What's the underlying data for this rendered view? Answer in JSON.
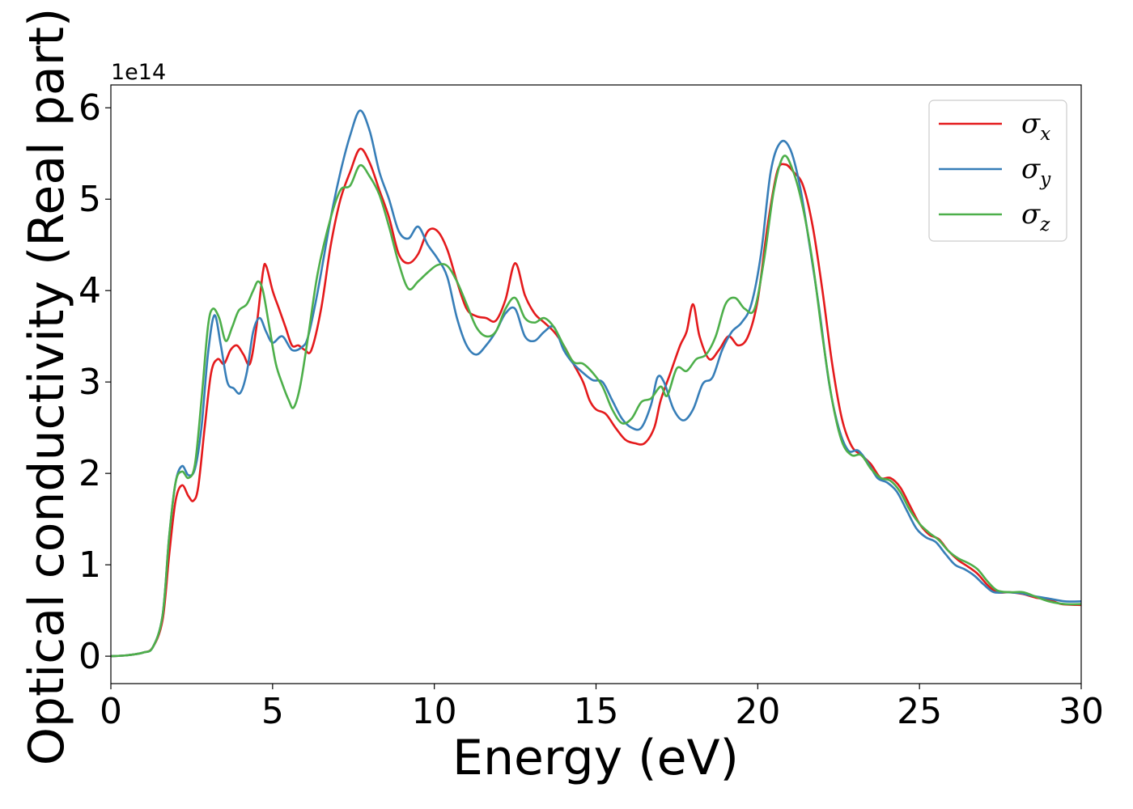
{
  "chart_data": {
    "type": "line",
    "xlabel": "Energy (eV)",
    "ylabel": "Optical conductivity (Real part)",
    "y_offset_label": "1e14",
    "y_scale": 100000000000000.0,
    "xlim": [
      0,
      30
    ],
    "ylim": [
      -0.3,
      6.25
    ],
    "x_ticks": [
      0,
      5,
      10,
      15,
      20,
      25,
      30
    ],
    "y_ticks": [
      0,
      1,
      2,
      3,
      4,
      5,
      6
    ],
    "grid": false,
    "legend_placement": "top-right",
    "series": [
      {
        "name": "σx",
        "symbol": "σ",
        "subscript": "x",
        "color": "#e41a1c",
        "points": [
          [
            0,
            0
          ],
          [
            0.5,
            0.01
          ],
          [
            1,
            0.04
          ],
          [
            1.3,
            0.1
          ],
          [
            1.6,
            0.4
          ],
          [
            1.8,
            1.1
          ],
          [
            2.0,
            1.7
          ],
          [
            2.2,
            1.87
          ],
          [
            2.4,
            1.75
          ],
          [
            2.55,
            1.7
          ],
          [
            2.7,
            1.85
          ],
          [
            2.9,
            2.5
          ],
          [
            3.1,
            3.1
          ],
          [
            3.3,
            3.25
          ],
          [
            3.5,
            3.2
          ],
          [
            3.7,
            3.35
          ],
          [
            3.9,
            3.4
          ],
          [
            4.1,
            3.3
          ],
          [
            4.3,
            3.2
          ],
          [
            4.5,
            3.6
          ],
          [
            4.7,
            4.2
          ],
          [
            4.8,
            4.27
          ],
          [
            5.0,
            4.0
          ],
          [
            5.2,
            3.8
          ],
          [
            5.4,
            3.6
          ],
          [
            5.6,
            3.4
          ],
          [
            5.8,
            3.4
          ],
          [
            6.0,
            3.35
          ],
          [
            6.2,
            3.35
          ],
          [
            6.5,
            3.8
          ],
          [
            6.8,
            4.5
          ],
          [
            7.1,
            5.0
          ],
          [
            7.4,
            5.3
          ],
          [
            7.7,
            5.55
          ],
          [
            8.0,
            5.4
          ],
          [
            8.3,
            5.1
          ],
          [
            8.6,
            4.8
          ],
          [
            8.9,
            4.4
          ],
          [
            9.2,
            4.3
          ],
          [
            9.5,
            4.4
          ],
          [
            9.8,
            4.65
          ],
          [
            10.1,
            4.65
          ],
          [
            10.4,
            4.45
          ],
          [
            10.7,
            4.1
          ],
          [
            11.0,
            3.8
          ],
          [
            11.3,
            3.72
          ],
          [
            11.6,
            3.7
          ],
          [
            11.9,
            3.67
          ],
          [
            12.2,
            3.9
          ],
          [
            12.5,
            4.3
          ],
          [
            12.8,
            3.95
          ],
          [
            13.1,
            3.75
          ],
          [
            13.4,
            3.65
          ],
          [
            13.7,
            3.55
          ],
          [
            14.0,
            3.4
          ],
          [
            14.3,
            3.2
          ],
          [
            14.6,
            3.0
          ],
          [
            14.8,
            2.8
          ],
          [
            15.0,
            2.7
          ],
          [
            15.3,
            2.65
          ],
          [
            15.6,
            2.5
          ],
          [
            15.9,
            2.37
          ],
          [
            16.2,
            2.33
          ],
          [
            16.5,
            2.33
          ],
          [
            16.8,
            2.5
          ],
          [
            17.0,
            2.8
          ],
          [
            17.3,
            3.1
          ],
          [
            17.6,
            3.4
          ],
          [
            17.8,
            3.55
          ],
          [
            18.0,
            3.85
          ],
          [
            18.2,
            3.5
          ],
          [
            18.5,
            3.25
          ],
          [
            18.8,
            3.35
          ],
          [
            19.1,
            3.5
          ],
          [
            19.4,
            3.4
          ],
          [
            19.7,
            3.5
          ],
          [
            20.0,
            3.9
          ],
          [
            20.3,
            4.7
          ],
          [
            20.6,
            5.3
          ],
          [
            20.85,
            5.38
          ],
          [
            21.1,
            5.3
          ],
          [
            21.4,
            5.15
          ],
          [
            21.7,
            4.7
          ],
          [
            22.0,
            4.0
          ],
          [
            22.3,
            3.2
          ],
          [
            22.6,
            2.6
          ],
          [
            22.9,
            2.3
          ],
          [
            23.2,
            2.2
          ],
          [
            23.5,
            2.1
          ],
          [
            23.8,
            1.95
          ],
          [
            24.1,
            1.95
          ],
          [
            24.4,
            1.85
          ],
          [
            24.7,
            1.65
          ],
          [
            25.0,
            1.45
          ],
          [
            25.3,
            1.33
          ],
          [
            25.6,
            1.28
          ],
          [
            25.9,
            1.15
          ],
          [
            26.2,
            1.05
          ],
          [
            26.5,
            0.98
          ],
          [
            26.8,
            0.9
          ],
          [
            27.1,
            0.78
          ],
          [
            27.4,
            0.7
          ],
          [
            27.8,
            0.7
          ],
          [
            28.2,
            0.68
          ],
          [
            28.6,
            0.64
          ],
          [
            29.0,
            0.62
          ],
          [
            29.4,
            0.57
          ],
          [
            30.0,
            0.56
          ]
        ]
      },
      {
        "name": "σy",
        "symbol": "σ",
        "subscript": "y",
        "color": "#377eb8",
        "points": [
          [
            0,
            0
          ],
          [
            0.5,
            0.01
          ],
          [
            1,
            0.04
          ],
          [
            1.3,
            0.1
          ],
          [
            1.6,
            0.45
          ],
          [
            1.8,
            1.3
          ],
          [
            2.0,
            1.9
          ],
          [
            2.2,
            2.08
          ],
          [
            2.4,
            1.98
          ],
          [
            2.6,
            2.05
          ],
          [
            2.8,
            2.5
          ],
          [
            3.0,
            3.3
          ],
          [
            3.2,
            3.73
          ],
          [
            3.4,
            3.4
          ],
          [
            3.6,
            3.0
          ],
          [
            3.8,
            2.93
          ],
          [
            4.0,
            2.88
          ],
          [
            4.2,
            3.1
          ],
          [
            4.4,
            3.55
          ],
          [
            4.6,
            3.7
          ],
          [
            4.8,
            3.55
          ],
          [
            5.0,
            3.43
          ],
          [
            5.3,
            3.5
          ],
          [
            5.6,
            3.35
          ],
          [
            5.9,
            3.38
          ],
          [
            6.1,
            3.5
          ],
          [
            6.4,
            4.0
          ],
          [
            6.8,
            4.8
          ],
          [
            7.1,
            5.3
          ],
          [
            7.4,
            5.7
          ],
          [
            7.7,
            5.97
          ],
          [
            8.0,
            5.75
          ],
          [
            8.3,
            5.3
          ],
          [
            8.6,
            5.0
          ],
          [
            8.9,
            4.65
          ],
          [
            9.2,
            4.57
          ],
          [
            9.5,
            4.7
          ],
          [
            9.8,
            4.5
          ],
          [
            10.1,
            4.35
          ],
          [
            10.4,
            4.15
          ],
          [
            10.7,
            3.7
          ],
          [
            11.0,
            3.4
          ],
          [
            11.3,
            3.3
          ],
          [
            11.6,
            3.4
          ],
          [
            11.9,
            3.55
          ],
          [
            12.2,
            3.75
          ],
          [
            12.5,
            3.8
          ],
          [
            12.8,
            3.5
          ],
          [
            13.1,
            3.45
          ],
          [
            13.4,
            3.55
          ],
          [
            13.7,
            3.6
          ],
          [
            14.0,
            3.35
          ],
          [
            14.3,
            3.2
          ],
          [
            14.6,
            3.1
          ],
          [
            14.9,
            3.02
          ],
          [
            15.2,
            3.0
          ],
          [
            15.5,
            2.8
          ],
          [
            15.8,
            2.6
          ],
          [
            16.1,
            2.5
          ],
          [
            16.4,
            2.5
          ],
          [
            16.7,
            2.75
          ],
          [
            16.9,
            3.05
          ],
          [
            17.1,
            3.0
          ],
          [
            17.4,
            2.7
          ],
          [
            17.7,
            2.58
          ],
          [
            18.0,
            2.7
          ],
          [
            18.3,
            2.98
          ],
          [
            18.6,
            3.05
          ],
          [
            18.9,
            3.35
          ],
          [
            19.2,
            3.55
          ],
          [
            19.5,
            3.65
          ],
          [
            19.8,
            3.85
          ],
          [
            20.1,
            4.4
          ],
          [
            20.4,
            5.3
          ],
          [
            20.7,
            5.62
          ],
          [
            21.0,
            5.55
          ],
          [
            21.3,
            5.15
          ],
          [
            21.6,
            4.5
          ],
          [
            21.9,
            3.8
          ],
          [
            22.2,
            3.0
          ],
          [
            22.5,
            2.5
          ],
          [
            22.8,
            2.25
          ],
          [
            23.1,
            2.25
          ],
          [
            23.4,
            2.12
          ],
          [
            23.7,
            1.95
          ],
          [
            24.0,
            1.9
          ],
          [
            24.3,
            1.8
          ],
          [
            24.6,
            1.6
          ],
          [
            24.9,
            1.4
          ],
          [
            25.2,
            1.3
          ],
          [
            25.5,
            1.25
          ],
          [
            25.8,
            1.12
          ],
          [
            26.1,
            1.0
          ],
          [
            26.4,
            0.95
          ],
          [
            26.7,
            0.88
          ],
          [
            27.0,
            0.78
          ],
          [
            27.3,
            0.7
          ],
          [
            27.7,
            0.7
          ],
          [
            28.1,
            0.69
          ],
          [
            28.5,
            0.66
          ],
          [
            29.0,
            0.63
          ],
          [
            29.5,
            0.6
          ],
          [
            30.0,
            0.6
          ]
        ]
      },
      {
        "name": "σz",
        "symbol": "σ",
        "subscript": "z",
        "color": "#4daf4a",
        "points": [
          [
            0,
            0
          ],
          [
            0.5,
            0.01
          ],
          [
            1,
            0.04
          ],
          [
            1.3,
            0.1
          ],
          [
            1.6,
            0.45
          ],
          [
            1.8,
            1.3
          ],
          [
            2.0,
            1.9
          ],
          [
            2.2,
            2.02
          ],
          [
            2.4,
            1.95
          ],
          [
            2.6,
            2.1
          ],
          [
            2.8,
            2.8
          ],
          [
            3.0,
            3.6
          ],
          [
            3.15,
            3.8
          ],
          [
            3.35,
            3.7
          ],
          [
            3.55,
            3.45
          ],
          [
            3.75,
            3.6
          ],
          [
            3.95,
            3.78
          ],
          [
            4.2,
            3.85
          ],
          [
            4.4,
            4.0
          ],
          [
            4.55,
            4.1
          ],
          [
            4.7,
            4.0
          ],
          [
            4.9,
            3.6
          ],
          [
            5.1,
            3.2
          ],
          [
            5.3,
            2.98
          ],
          [
            5.5,
            2.8
          ],
          [
            5.65,
            2.72
          ],
          [
            5.85,
            2.95
          ],
          [
            6.1,
            3.5
          ],
          [
            6.4,
            4.2
          ],
          [
            6.8,
            4.8
          ],
          [
            7.1,
            5.1
          ],
          [
            7.4,
            5.15
          ],
          [
            7.7,
            5.37
          ],
          [
            8.0,
            5.25
          ],
          [
            8.3,
            5.05
          ],
          [
            8.6,
            4.7
          ],
          [
            8.9,
            4.3
          ],
          [
            9.2,
            4.02
          ],
          [
            9.5,
            4.1
          ],
          [
            9.8,
            4.2
          ],
          [
            10.1,
            4.28
          ],
          [
            10.4,
            4.27
          ],
          [
            10.7,
            4.1
          ],
          [
            11.0,
            3.85
          ],
          [
            11.3,
            3.6
          ],
          [
            11.6,
            3.5
          ],
          [
            11.9,
            3.55
          ],
          [
            12.2,
            3.8
          ],
          [
            12.5,
            3.92
          ],
          [
            12.8,
            3.7
          ],
          [
            13.1,
            3.65
          ],
          [
            13.4,
            3.7
          ],
          [
            13.7,
            3.6
          ],
          [
            14.0,
            3.4
          ],
          [
            14.3,
            3.22
          ],
          [
            14.6,
            3.2
          ],
          [
            14.9,
            3.1
          ],
          [
            15.2,
            2.95
          ],
          [
            15.5,
            2.7
          ],
          [
            15.8,
            2.55
          ],
          [
            16.1,
            2.6
          ],
          [
            16.4,
            2.78
          ],
          [
            16.7,
            2.82
          ],
          [
            17.0,
            2.95
          ],
          [
            17.2,
            2.85
          ],
          [
            17.5,
            3.15
          ],
          [
            17.8,
            3.12
          ],
          [
            18.1,
            3.25
          ],
          [
            18.4,
            3.3
          ],
          [
            18.7,
            3.5
          ],
          [
            19.0,
            3.85
          ],
          [
            19.3,
            3.92
          ],
          [
            19.6,
            3.8
          ],
          [
            19.9,
            3.8
          ],
          [
            20.2,
            4.35
          ],
          [
            20.5,
            5.1
          ],
          [
            20.8,
            5.47
          ],
          [
            21.1,
            5.3
          ],
          [
            21.4,
            4.9
          ],
          [
            21.7,
            4.3
          ],
          [
            22.0,
            3.5
          ],
          [
            22.3,
            2.8
          ],
          [
            22.6,
            2.35
          ],
          [
            22.9,
            2.2
          ],
          [
            23.2,
            2.2
          ],
          [
            23.5,
            2.05
          ],
          [
            23.8,
            1.95
          ],
          [
            24.1,
            1.92
          ],
          [
            24.4,
            1.8
          ],
          [
            24.7,
            1.6
          ],
          [
            25.0,
            1.45
          ],
          [
            25.3,
            1.35
          ],
          [
            25.6,
            1.27
          ],
          [
            25.9,
            1.15
          ],
          [
            26.2,
            1.07
          ],
          [
            26.5,
            1.02
          ],
          [
            26.8,
            0.95
          ],
          [
            27.1,
            0.82
          ],
          [
            27.4,
            0.72
          ],
          [
            27.8,
            0.7
          ],
          [
            28.2,
            0.7
          ],
          [
            28.6,
            0.65
          ],
          [
            29.0,
            0.6
          ],
          [
            29.5,
            0.57
          ],
          [
            30.0,
            0.57
          ]
        ]
      }
    ]
  }
}
